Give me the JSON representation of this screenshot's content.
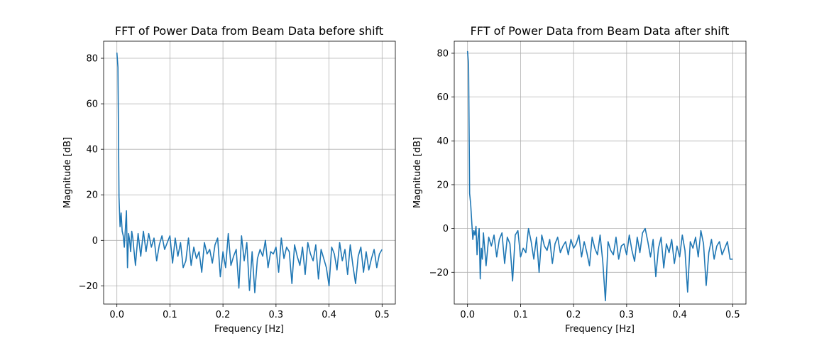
{
  "chart_data": [
    {
      "type": "line",
      "title": "FFT of Power Data from Beam Data before shift",
      "xlabel": "Frequency [Hz]",
      "ylabel": "Magnitude [dB]",
      "xlim": [
        -0.025,
        0.525
      ],
      "ylim": [
        -28,
        87.5
      ],
      "xticks": [
        0.0,
        0.1,
        0.2,
        0.3,
        0.4,
        0.5
      ],
      "xtick_labels": [
        "0.0",
        "0.1",
        "0.2",
        "0.3",
        "0.4",
        "0.5"
      ],
      "yticks": [
        -20,
        0,
        20,
        40,
        60,
        80
      ],
      "ytick_labels": [
        "−20",
        "0",
        "20",
        "40",
        "60",
        "80"
      ],
      "grid": true,
      "color": "#1f77b4",
      "series": [
        {
          "x": [
            0.0,
            0.002,
            0.004,
            0.006,
            0.008,
            0.01,
            0.012,
            0.014,
            0.016,
            0.018,
            0.02,
            0.022,
            0.024,
            0.026,
            0.028,
            0.03,
            0.035,
            0.04,
            0.045,
            0.05,
            0.055,
            0.06,
            0.065,
            0.07,
            0.075,
            0.08,
            0.085,
            0.09,
            0.095,
            0.1,
            0.105,
            0.11,
            0.115,
            0.12,
            0.125,
            0.13,
            0.135,
            0.14,
            0.145,
            0.15,
            0.155,
            0.16,
            0.165,
            0.17,
            0.175,
            0.18,
            0.185,
            0.19,
            0.195,
            0.2,
            0.205,
            0.21,
            0.215,
            0.22,
            0.225,
            0.23,
            0.235,
            0.24,
            0.245,
            0.25,
            0.255,
            0.26,
            0.265,
            0.27,
            0.275,
            0.28,
            0.285,
            0.29,
            0.295,
            0.3,
            0.305,
            0.31,
            0.315,
            0.32,
            0.325,
            0.33,
            0.335,
            0.34,
            0.345,
            0.35,
            0.355,
            0.36,
            0.365,
            0.37,
            0.375,
            0.38,
            0.385,
            0.39,
            0.395,
            0.4,
            0.405,
            0.41,
            0.415,
            0.42,
            0.425,
            0.43,
            0.435,
            0.44,
            0.445,
            0.45,
            0.455,
            0.46,
            0.465,
            0.47,
            0.475,
            0.48,
            0.485,
            0.49,
            0.495,
            0.5
          ],
          "y": [
            82.5,
            76,
            19,
            6,
            12,
            4,
            2,
            -3,
            5,
            13,
            -12,
            3,
            0,
            -5,
            4,
            1,
            -11,
            3,
            -7,
            4,
            -5,
            3,
            -3,
            1,
            -9,
            -2,
            2,
            -4,
            -1,
            2,
            -10,
            1,
            -7,
            -1,
            -12,
            -9,
            1,
            -11,
            -3,
            -8,
            -5,
            -14,
            -1,
            -6,
            -4,
            -10,
            -2,
            1,
            -16,
            -5,
            -12,
            3,
            -11,
            -7,
            -4,
            -21,
            2,
            -9,
            -1,
            -22,
            -5,
            -23,
            -8,
            -4,
            -7,
            0,
            -12,
            -5,
            -6,
            -3,
            -14,
            1,
            -8,
            -3,
            -5,
            -19,
            -2,
            -7,
            -11,
            -3,
            -15,
            -1,
            -6,
            -9,
            -2,
            -17,
            -4,
            -8,
            -12,
            -20,
            -3,
            -6,
            -13,
            -1,
            -9,
            -4,
            -15,
            -2,
            -11,
            -19,
            -7,
            -3,
            -14,
            -5,
            -13,
            -8,
            -4,
            -12,
            -6,
            -4
          ]
        }
      ]
    },
    {
      "type": "line",
      "title": "FFT of Power Data from Beam Data after shift",
      "xlabel": "Frequency [Hz]",
      "ylabel": "Magnitude [dB]",
      "xlim": [
        -0.025,
        0.525
      ],
      "ylim": [
        -34.5,
        85.5
      ],
      "xticks": [
        0.0,
        0.1,
        0.2,
        0.3,
        0.4,
        0.5
      ],
      "xtick_labels": [
        "0.0",
        "0.1",
        "0.2",
        "0.3",
        "0.4",
        "0.5"
      ],
      "yticks": [
        -20,
        0,
        20,
        40,
        60,
        80
      ],
      "ytick_labels": [
        "−20",
        "0",
        "20",
        "40",
        "60",
        "80"
      ],
      "grid": true,
      "color": "#1f77b4",
      "series": [
        {
          "x": [
            0.0,
            0.002,
            0.004,
            0.006,
            0.008,
            0.01,
            0.012,
            0.014,
            0.016,
            0.018,
            0.02,
            0.022,
            0.024,
            0.026,
            0.028,
            0.03,
            0.035,
            0.04,
            0.045,
            0.05,
            0.055,
            0.06,
            0.065,
            0.07,
            0.075,
            0.08,
            0.085,
            0.09,
            0.095,
            0.1,
            0.105,
            0.11,
            0.115,
            0.12,
            0.125,
            0.13,
            0.135,
            0.14,
            0.145,
            0.15,
            0.155,
            0.16,
            0.165,
            0.17,
            0.175,
            0.18,
            0.185,
            0.19,
            0.195,
            0.2,
            0.205,
            0.21,
            0.215,
            0.22,
            0.225,
            0.23,
            0.235,
            0.24,
            0.245,
            0.25,
            0.255,
            0.26,
            0.265,
            0.27,
            0.275,
            0.28,
            0.285,
            0.29,
            0.295,
            0.3,
            0.305,
            0.31,
            0.315,
            0.32,
            0.325,
            0.33,
            0.335,
            0.34,
            0.345,
            0.35,
            0.355,
            0.36,
            0.365,
            0.37,
            0.375,
            0.38,
            0.385,
            0.39,
            0.395,
            0.4,
            0.405,
            0.41,
            0.415,
            0.42,
            0.425,
            0.43,
            0.435,
            0.44,
            0.445,
            0.45,
            0.455,
            0.46,
            0.465,
            0.47,
            0.475,
            0.48,
            0.485,
            0.49,
            0.495,
            0.5
          ],
          "y": [
            81,
            75,
            16,
            11,
            3,
            -5,
            -1,
            -3,
            1,
            -12,
            -4,
            0,
            -23,
            -9,
            -14,
            -2,
            -17,
            -4,
            -8,
            -3,
            -13,
            -5,
            -2,
            -16,
            -4,
            -7,
            -24,
            -3,
            -1,
            -13,
            -9,
            -11,
            0,
            -6,
            -14,
            -4,
            -20,
            -3,
            -8,
            -10,
            -5,
            -16,
            -7,
            -4,
            -11,
            -8,
            -6,
            -12,
            -5,
            -9,
            -7,
            -3,
            -13,
            -6,
            -11,
            -17,
            -4,
            -9,
            -12,
            -3,
            -15,
            -33,
            -6,
            -10,
            -12,
            -4,
            -14,
            -8,
            -7,
            -12,
            -3,
            -10,
            -15,
            -4,
            -11,
            -2,
            0,
            -6,
            -13,
            -5,
            -22,
            -9,
            -4,
            -18,
            -7,
            -11,
            -5,
            -16,
            -8,
            -13,
            -3,
            -10,
            -29,
            -6,
            -9,
            -4,
            -13,
            -1,
            -7,
            -26,
            -11,
            -5,
            -14,
            -8,
            -6,
            -12,
            -9,
            -6,
            -14,
            -14
          ]
        }
      ]
    }
  ]
}
